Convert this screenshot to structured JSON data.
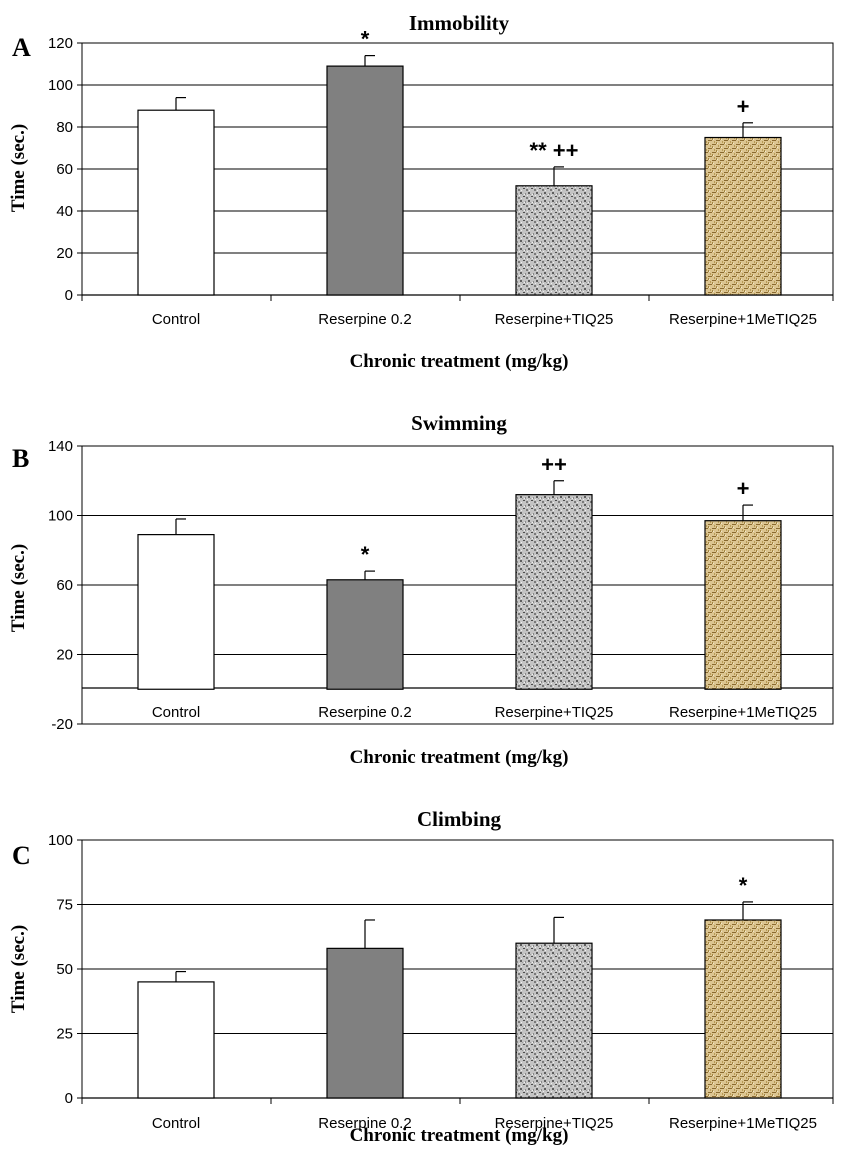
{
  "chart_data": [
    {
      "panel_letter": "A",
      "type": "bar",
      "title": "Immobility",
      "xlabel": "Chronic treatment (mg/kg)",
      "ylabel": "Time (sec.)",
      "categories": [
        "Control",
        "Reserpine 0.2",
        "Reserpine+TIQ25",
        "Reserpine+1MeTIQ25"
      ],
      "values": [
        88,
        109,
        52,
        75
      ],
      "errors": [
        6,
        5,
        9,
        7
      ],
      "annotations": [
        "",
        "*",
        "** ++",
        "+"
      ],
      "ylim": [
        0,
        120
      ],
      "yticks": [
        0,
        20,
        40,
        60,
        80,
        100,
        120
      ],
      "grid": true,
      "legend": "none"
    },
    {
      "panel_letter": "B",
      "type": "bar",
      "title": "Swimming",
      "xlabel": "Chronic treatment (mg/kg)",
      "ylabel": "Time (sec.)",
      "categories": [
        "Control",
        "Reserpine 0.2",
        "Reserpine+TIQ25",
        "Reserpine+1MeTIQ25"
      ],
      "values": [
        89,
        63,
        112,
        97
      ],
      "errors": [
        9,
        5,
        8,
        9
      ],
      "annotations": [
        "",
        "*",
        "++",
        "+"
      ],
      "ylim": [
        -20,
        140
      ],
      "yticks": [
        -20,
        20,
        60,
        100,
        140
      ],
      "grid": true,
      "legend": "none"
    },
    {
      "panel_letter": "C",
      "type": "bar",
      "title": "Climbing",
      "xlabel": "Chronic treatment (mg/kg)",
      "ylabel": "Time (sec.)",
      "categories": [
        "Control",
        "Reserpine 0.2",
        "Reserpine+TIQ25",
        "Reserpine+1MeTIQ25"
      ],
      "values": [
        45,
        58,
        60,
        69
      ],
      "errors": [
        4,
        11,
        10,
        7
      ],
      "annotations": [
        "",
        "",
        "",
        "*"
      ],
      "ylim": [
        0,
        100
      ],
      "yticks": [
        0,
        25,
        50,
        75,
        100
      ],
      "grid": true,
      "legend": "none"
    }
  ],
  "colors": {
    "control_fill": "#ffffff",
    "reserpine_fill": "#808080",
    "tiq_fill": "#c0c0c0",
    "tiq_speckle": "#6a6a6a",
    "metiq_fill": "#d9bf86",
    "metiq_weave": "#8a6a30",
    "stroke": "#000000"
  }
}
